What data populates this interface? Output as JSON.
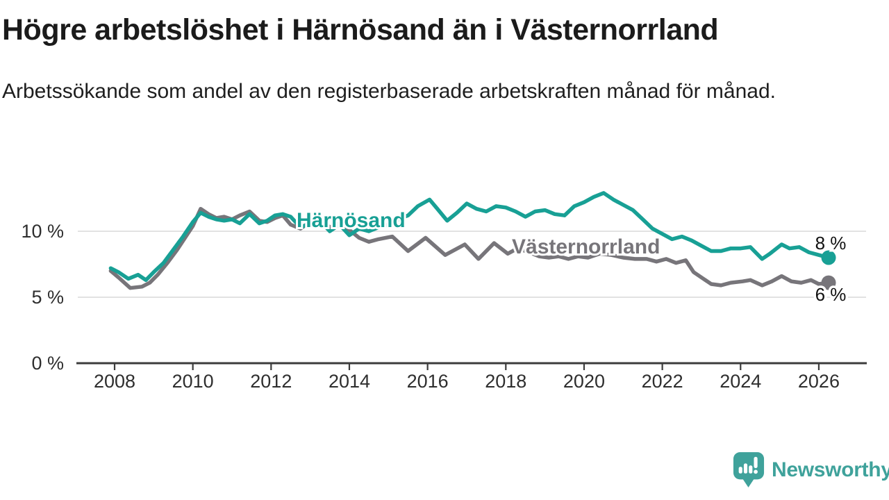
{
  "title": "Högre arbetslöshet i Härnösand än i Västernorrland",
  "subtitle": "Arbetssökande som andel av den registerbaserade arbetskraften månad för månad.",
  "branding": {
    "logo_text": "Newsworthy",
    "logo_icon": "speech-bubble-bar-chart-icon",
    "logo_color": "#3fa29b"
  },
  "colors": {
    "harnosand": "#18a095",
    "vasternorrland": "#77757a",
    "gridline": "#d9d9d9",
    "axis": "#3c3c3c",
    "tick_text": "#2e2e2e",
    "value_label_text": "#111111"
  },
  "chart_data": {
    "type": "line",
    "title": "Högre arbetslöshet i Härnösand än i Västernorrland",
    "xlabel": "",
    "ylabel": "",
    "unit": "%",
    "grid": "horizontal",
    "legend_position": "inline-labels",
    "x_range": [
      2007.85,
      2027.2
    ],
    "y_range": [
      0,
      14
    ],
    "x_ticks": [
      {
        "value": 2008,
        "label": "2008"
      },
      {
        "value": 2010,
        "label": "2010"
      },
      {
        "value": 2012,
        "label": "2012"
      },
      {
        "value": 2014,
        "label": "2014"
      },
      {
        "value": 2016,
        "label": "2016"
      },
      {
        "value": 2018,
        "label": "2018"
      },
      {
        "value": 2020,
        "label": "2020"
      },
      {
        "value": 2022,
        "label": "2022"
      },
      {
        "value": 2024,
        "label": "2024"
      },
      {
        "value": 2026,
        "label": "2026"
      }
    ],
    "y_ticks": [
      {
        "value": 0,
        "label": "0 %"
      },
      {
        "value": 5,
        "label": "5 %"
      },
      {
        "value": 10,
        "label": "10 %"
      }
    ],
    "series": [
      {
        "name": "Härnösand",
        "color": "#18a095",
        "end_label": "8 %",
        "end_value": 8.0,
        "points": [
          [
            2007.9,
            7.2
          ],
          [
            2008.1,
            6.9
          ],
          [
            2008.35,
            6.4
          ],
          [
            2008.6,
            6.7
          ],
          [
            2008.8,
            6.3
          ],
          [
            2009,
            6.9
          ],
          [
            2009.25,
            7.6
          ],
          [
            2009.5,
            8.6
          ],
          [
            2009.75,
            9.6
          ],
          [
            2010,
            10.7
          ],
          [
            2010.2,
            11.4
          ],
          [
            2010.4,
            11.1
          ],
          [
            2010.6,
            10.9
          ],
          [
            2010.8,
            10.8
          ],
          [
            2011,
            10.9
          ],
          [
            2011.2,
            10.6
          ],
          [
            2011.45,
            11.3
          ],
          [
            2011.7,
            10.6
          ],
          [
            2011.9,
            10.8
          ],
          [
            2012.1,
            11.2
          ],
          [
            2012.3,
            11.3
          ],
          [
            2012.5,
            11.1
          ],
          [
            2012.75,
            10.3
          ],
          [
            2013,
            10.6
          ],
          [
            2013.25,
            10.8
          ],
          [
            2013.5,
            10
          ],
          [
            2013.75,
            10.5
          ],
          [
            2014,
            9.7
          ],
          [
            2014.25,
            10.2
          ],
          [
            2014.5,
            10
          ],
          [
            2014.75,
            10.3
          ],
          [
            2015,
            10.5
          ],
          [
            2015.25,
            10.9
          ],
          [
            2015.5,
            11.2
          ],
          [
            2015.75,
            11.9
          ],
          [
            2016.05,
            12.4
          ],
          [
            2016.25,
            11.7
          ],
          [
            2016.5,
            10.8
          ],
          [
            2016.75,
            11.4
          ],
          [
            2017,
            12.1
          ],
          [
            2017.25,
            11.7
          ],
          [
            2017.5,
            11.5
          ],
          [
            2017.75,
            11.9
          ],
          [
            2018,
            11.8
          ],
          [
            2018.25,
            11.5
          ],
          [
            2018.5,
            11.1
          ],
          [
            2018.75,
            11.5
          ],
          [
            2019,
            11.6
          ],
          [
            2019.25,
            11.3
          ],
          [
            2019.5,
            11.2
          ],
          [
            2019.75,
            11.9
          ],
          [
            2020,
            12.2
          ],
          [
            2020.25,
            12.6
          ],
          [
            2020.5,
            12.9
          ],
          [
            2020.75,
            12.4
          ],
          [
            2021,
            12
          ],
          [
            2021.25,
            11.6
          ],
          [
            2021.5,
            10.9
          ],
          [
            2021.75,
            10.2
          ],
          [
            2022,
            9.8
          ],
          [
            2022.25,
            9.4
          ],
          [
            2022.5,
            9.6
          ],
          [
            2022.75,
            9.3
          ],
          [
            2023,
            8.9
          ],
          [
            2023.25,
            8.5
          ],
          [
            2023.5,
            8.5
          ],
          [
            2023.75,
            8.7
          ],
          [
            2024,
            8.7
          ],
          [
            2024.25,
            8.8
          ],
          [
            2024.55,
            7.9
          ],
          [
            2024.75,
            8.3
          ],
          [
            2025.05,
            9
          ],
          [
            2025.25,
            8.7
          ],
          [
            2025.5,
            8.8
          ],
          [
            2025.75,
            8.4
          ],
          [
            2026,
            8.2
          ],
          [
            2026.25,
            8
          ]
        ]
      },
      {
        "name": "Västernorrland",
        "color": "#77757a",
        "end_label": "6 %",
        "end_value": 6.1,
        "points": [
          [
            2007.9,
            7
          ],
          [
            2008.1,
            6.5
          ],
          [
            2008.4,
            5.7
          ],
          [
            2008.7,
            5.8
          ],
          [
            2008.9,
            6.1
          ],
          [
            2009.1,
            6.7
          ],
          [
            2009.35,
            7.6
          ],
          [
            2009.6,
            8.6
          ],
          [
            2009.8,
            9.5
          ],
          [
            2010,
            10.4
          ],
          [
            2010.2,
            11.7
          ],
          [
            2010.4,
            11.3
          ],
          [
            2010.6,
            11
          ],
          [
            2010.8,
            11.1
          ],
          [
            2011,
            10.9
          ],
          [
            2011.2,
            11.2
          ],
          [
            2011.45,
            11.5
          ],
          [
            2011.7,
            10.8
          ],
          [
            2011.9,
            10.7
          ],
          [
            2012.1,
            11
          ],
          [
            2012.3,
            11.2
          ],
          [
            2012.5,
            10.5
          ],
          [
            2012.75,
            10.2
          ],
          [
            2013,
            10.7
          ],
          [
            2013.25,
            11
          ],
          [
            2013.5,
            10.3
          ],
          [
            2013.75,
            10.6
          ],
          [
            2014,
            10.1
          ],
          [
            2014.25,
            9.5
          ],
          [
            2014.5,
            9.2
          ],
          [
            2014.75,
            9.4
          ],
          [
            2015.1,
            9.6
          ],
          [
            2015.5,
            8.5
          ],
          [
            2015.95,
            9.5
          ],
          [
            2016.45,
            8.2
          ],
          [
            2016.95,
            9
          ],
          [
            2017.3,
            7.9
          ],
          [
            2017.7,
            9.1
          ],
          [
            2018.05,
            8.3
          ],
          [
            2018.3,
            8.7
          ],
          [
            2018.6,
            8.4
          ],
          [
            2018.85,
            8.1
          ],
          [
            2019.1,
            8
          ],
          [
            2019.35,
            8.1
          ],
          [
            2019.6,
            7.9
          ],
          [
            2019.85,
            8.1
          ],
          [
            2020.1,
            8
          ],
          [
            2020.4,
            8.3
          ],
          [
            2020.7,
            8.2
          ],
          [
            2021,
            8
          ],
          [
            2021.3,
            7.9
          ],
          [
            2021.6,
            7.9
          ],
          [
            2021.85,
            7.7
          ],
          [
            2022.1,
            7.9
          ],
          [
            2022.35,
            7.6
          ],
          [
            2022.6,
            7.8
          ],
          [
            2022.8,
            6.9
          ],
          [
            2023,
            6.5
          ],
          [
            2023.25,
            6
          ],
          [
            2023.5,
            5.9
          ],
          [
            2023.75,
            6.1
          ],
          [
            2024.05,
            6.2
          ],
          [
            2024.25,
            6.3
          ],
          [
            2024.55,
            5.9
          ],
          [
            2024.8,
            6.2
          ],
          [
            2025.05,
            6.6
          ],
          [
            2025.3,
            6.2
          ],
          [
            2025.55,
            6.1
          ],
          [
            2025.8,
            6.3
          ],
          [
            2026,
            6
          ],
          [
            2026.25,
            6.1
          ]
        ]
      }
    ]
  }
}
